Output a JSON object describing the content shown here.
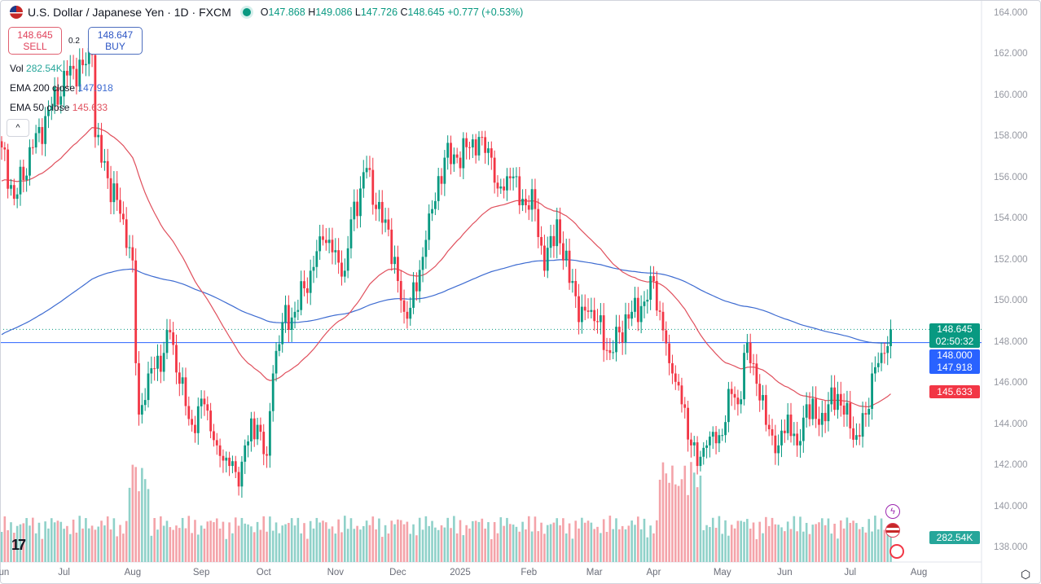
{
  "header": {
    "symbol_title": "U.S. Dollar / Japanese Yen · 1D · FXCM",
    "open_label": "O",
    "open": "147.868",
    "high_label": "H",
    "high": "149.086",
    "low_label": "L",
    "low": "147.726",
    "close_label": "C",
    "close": "148.645",
    "change": "+0.777 (+0.53%)"
  },
  "trade": {
    "sell_price": "148.645",
    "sell_label": "SELL",
    "spread": "0.2",
    "buy_price": "148.647",
    "buy_label": "BUY"
  },
  "legend": {
    "vol_label": "Vol",
    "vol_value": "282.54K",
    "ema200_label": "EMA 200 close",
    "ema200_value": "147.918",
    "ema50_label": "EMA 50 close",
    "ema50_value": "145.633",
    "collapse": "^"
  },
  "price_labels": {
    "last": "148.645",
    "countdown": "02:50:32",
    "level": "148.000",
    "ema200": "147.918",
    "ema50": "145.633",
    "volume": "282.54K"
  },
  "colors": {
    "up": "#089981",
    "down": "#f23645",
    "ema200": "#3d6bd1",
    "ema50": "#e0505d",
    "level": "#2962ff"
  },
  "chart_data": {
    "type": "candlestick",
    "title": "U.S. Dollar / Japanese Yen · 1D · FXCM",
    "y_ticks": [
      "164.000",
      "162.000",
      "160.000",
      "158.000",
      "156.000",
      "154.000",
      "152.000",
      "150.000",
      "148.000",
      "146.000",
      "144.000",
      "142.000",
      "140.000",
      "138.000"
    ],
    "ylim": [
      138,
      164
    ],
    "x_ticks": [
      "Jun",
      "Jul",
      "Aug",
      "Sep",
      "Oct",
      "Nov",
      "Dec",
      "2025",
      "Feb",
      "Mar",
      "Apr",
      "May",
      "Jun",
      "Jul",
      "Aug"
    ],
    "x_tick_days": [
      0,
      20,
      42,
      64,
      84,
      107,
      127,
      147,
      169,
      190,
      209,
      231,
      251,
      272,
      294
    ],
    "horizontal_level": 148.0,
    "close_path_day_price": [
      [
        0,
        157.5
      ],
      [
        4,
        155
      ],
      [
        10,
        157.5
      ],
      [
        16,
        159.5
      ],
      [
        21,
        161
      ],
      [
        26,
        161.5
      ],
      [
        29,
        162
      ],
      [
        30,
        158
      ],
      [
        34,
        156
      ],
      [
        39,
        154
      ],
      [
        42,
        152
      ],
      [
        43,
        147
      ],
      [
        44,
        144.5
      ],
      [
        47,
        146.5
      ],
      [
        52,
        147.5
      ],
      [
        54,
        148.5
      ],
      [
        57,
        146
      ],
      [
        61,
        144
      ],
      [
        65,
        145
      ],
      [
        69,
        143
      ],
      [
        73,
        142
      ],
      [
        76,
        141
      ],
      [
        78,
        143
      ],
      [
        82,
        144
      ],
      [
        85,
        142.5
      ],
      [
        87,
        146.5
      ],
      [
        90,
        149
      ],
      [
        94,
        149.5
      ],
      [
        99,
        151.5
      ],
      [
        103,
        153
      ],
      [
        107,
        152.5
      ],
      [
        110,
        151.5
      ],
      [
        112,
        154
      ],
      [
        115,
        155.5
      ],
      [
        117,
        156.5
      ],
      [
        120,
        154.5
      ],
      [
        124,
        153.5
      ],
      [
        127,
        151
      ],
      [
        129,
        149.5
      ],
      [
        133,
        150.5
      ],
      [
        136,
        153
      ],
      [
        138,
        154.5
      ],
      [
        142,
        157
      ],
      [
        146,
        157
      ],
      [
        150,
        157.5
      ],
      [
        154,
        158
      ],
      [
        157,
        157
      ],
      [
        159,
        155.5
      ],
      [
        163,
        156
      ],
      [
        167,
        155
      ],
      [
        171,
        154.5
      ],
      [
        174,
        151.5
      ],
      [
        178,
        154
      ],
      [
        180,
        152
      ],
      [
        183,
        151
      ],
      [
        185,
        149
      ],
      [
        188,
        149.5
      ],
      [
        191,
        149
      ],
      [
        195,
        147.5
      ],
      [
        198,
        148.5
      ],
      [
        202,
        149.5
      ],
      [
        206,
        150
      ],
      [
        209,
        151
      ],
      [
        211,
        149.5
      ],
      [
        214,
        147
      ],
      [
        215,
        146.5
      ],
      [
        218,
        145
      ],
      [
        221,
        143
      ],
      [
        223,
        142
      ],
      [
        226,
        143
      ],
      [
        230,
        143.5
      ],
      [
        234,
        145.5
      ],
      [
        236,
        145
      ],
      [
        239,
        148
      ],
      [
        242,
        146
      ],
      [
        245,
        144
      ],
      [
        249,
        143
      ],
      [
        252,
        144.5
      ],
      [
        255,
        143
      ],
      [
        258,
        145
      ],
      [
        262,
        144
      ],
      [
        265,
        145
      ],
      [
        268,
        145.5
      ],
      [
        270,
        144.5
      ],
      [
        274,
        143.5
      ],
      [
        277,
        144.5
      ],
      [
        279,
        146.5
      ],
      [
        282,
        147.5
      ],
      [
        285,
        148.645
      ]
    ]
  }
}
